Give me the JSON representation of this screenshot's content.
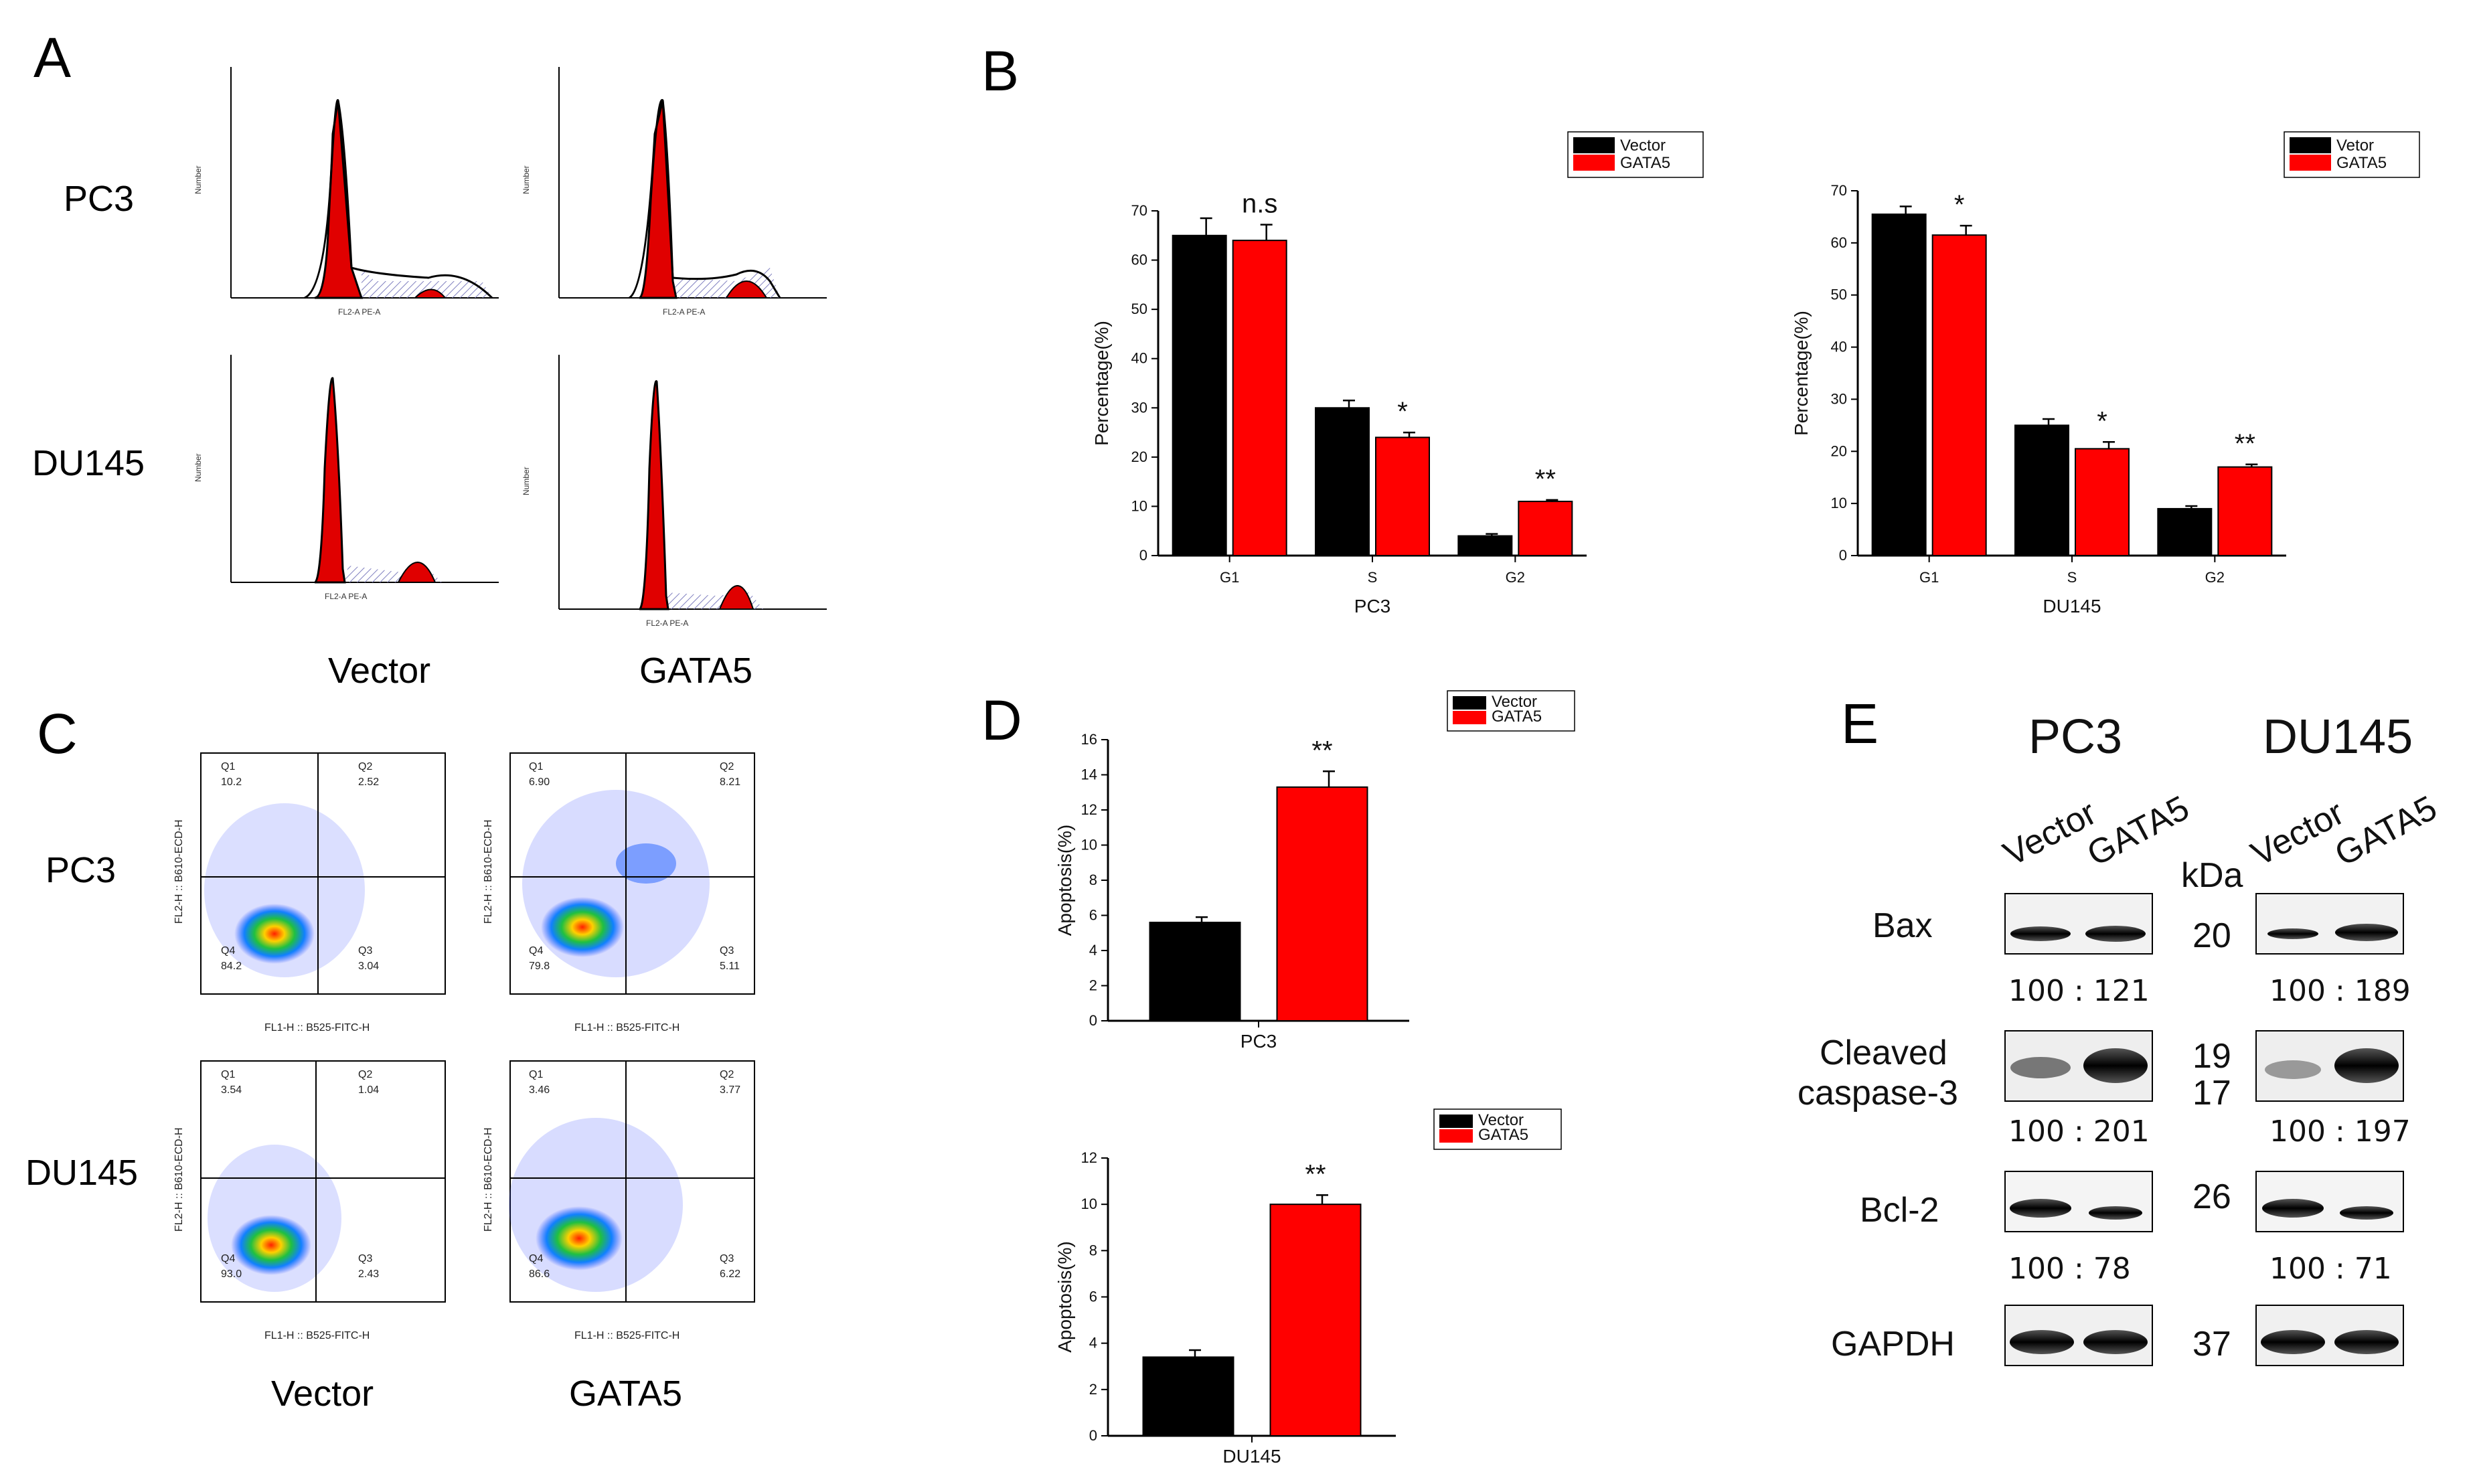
{
  "panel_labels": {
    "a": "A",
    "b": "B",
    "c": "C",
    "d": "D",
    "e": "E"
  },
  "panel_a": {
    "row_labels": [
      "PC3",
      "DU145"
    ],
    "col_labels": [
      "Vector",
      "GATA5"
    ],
    "x_axis_label": "FL2-A PE-A",
    "y_axis_label": "Number"
  },
  "panel_c": {
    "row_labels": [
      "PC3",
      "DU145"
    ],
    "col_labels": [
      "Vector",
      "GATA5"
    ],
    "x_axis_label": "FL1-H :: B525-FITC-H",
    "y_axis_label": "FL2-H :: B610-ECD-H",
    "quadrants": [
      {
        "q1": "10.2",
        "q2": "2.52",
        "q3": "3.04",
        "q4": "84.2"
      },
      {
        "q1": "6.90",
        "q2": "8.21",
        "q3": "5.11",
        "q4": "79.8"
      },
      {
        "q1": "3.54",
        "q2": "1.04",
        "q3": "2.43",
        "q4": "93.0"
      },
      {
        "q1": "3.46",
        "q2": "3.77",
        "q3": "6.22",
        "q4": "86.6"
      }
    ]
  },
  "chart_data": [
    {
      "id": "B-PC3",
      "type": "bar",
      "categories": [
        "G1",
        "S",
        "G2"
      ],
      "series": [
        {
          "name": "Vector",
          "color": "#000000",
          "values": [
            65,
            30,
            4
          ],
          "errors": [
            3.5,
            1.5,
            0.4
          ]
        },
        {
          "name": "GATA5",
          "color": "#ff0000",
          "values": [
            64,
            24,
            11
          ],
          "errors": [
            3.2,
            1.0,
            0.3
          ]
        }
      ],
      "significance": [
        "n.s",
        "*",
        "**"
      ],
      "xlabel": "PC3",
      "ylabel": "Percentage(%)",
      "ylim": [
        0,
        70
      ],
      "yticks": [
        0,
        10,
        20,
        30,
        40,
        50,
        60,
        70
      ]
    },
    {
      "id": "B-DU145",
      "type": "bar",
      "categories": [
        "G1",
        "S",
        "G2"
      ],
      "series": [
        {
          "name": "Vetor",
          "color": "#000000",
          "values": [
            65.5,
            25,
            9
          ],
          "errors": [
            1.5,
            1.2,
            0.5
          ]
        },
        {
          "name": "GATA5",
          "color": "#ff0000",
          "values": [
            61.5,
            20.5,
            17
          ],
          "errors": [
            1.8,
            1.3,
            0.5
          ]
        }
      ],
      "significance": [
        "*",
        "*",
        "**"
      ],
      "xlabel": "DU145",
      "ylabel": "Percentage(%)",
      "ylim": [
        0,
        70
      ],
      "yticks": [
        0,
        10,
        20,
        30,
        40,
        50,
        60,
        70
      ]
    },
    {
      "id": "D-PC3",
      "type": "bar",
      "categories": [
        "PC3"
      ],
      "series": [
        {
          "name": "Vector",
          "color": "#000000",
          "values": [
            5.6
          ],
          "errors": [
            0.3
          ]
        },
        {
          "name": "GATA5",
          "color": "#ff0000",
          "values": [
            13.3
          ],
          "errors": [
            0.9
          ]
        }
      ],
      "significance": [
        "**"
      ],
      "xlabel": "PC3",
      "ylabel": "Apoptosis(%)",
      "ylim": [
        0,
        16
      ],
      "yticks": [
        0,
        2,
        4,
        6,
        8,
        10,
        12,
        14,
        16
      ]
    },
    {
      "id": "D-DU145",
      "type": "bar",
      "categories": [
        "DU145"
      ],
      "series": [
        {
          "name": "Vector",
          "color": "#000000",
          "values": [
            3.4
          ],
          "errors": [
            0.3
          ]
        },
        {
          "name": "GATA5",
          "color": "#ff0000",
          "values": [
            10
          ],
          "errors": [
            0.4
          ]
        }
      ],
      "significance": [
        "**"
      ],
      "xlabel": "DU145",
      "ylabel": "Apoptosis(%)",
      "ylim": [
        0,
        12
      ],
      "yticks": [
        0,
        2,
        4,
        6,
        8,
        10,
        12
      ]
    }
  ],
  "panel_e": {
    "cell_lines": [
      "PC3",
      "DU145"
    ],
    "lane_labels": [
      "Vector",
      "GATA5"
    ],
    "kda_header": "kDa",
    "proteins": [
      {
        "name": "Bax",
        "kda": "20",
        "ratios": [
          "100 :  121",
          "100 :  189"
        ]
      },
      {
        "name": "Cleaved",
        "name2": "caspase-3",
        "kda": "19",
        "kda2": "17",
        "ratios": [
          "100 :  201",
          "100 : 197"
        ]
      },
      {
        "name": "Bcl-2",
        "kda": "26",
        "ratios": [
          "100 :  78",
          "100  :  71"
        ]
      },
      {
        "name": "GAPDH",
        "kda": "37",
        "ratios": []
      }
    ]
  }
}
